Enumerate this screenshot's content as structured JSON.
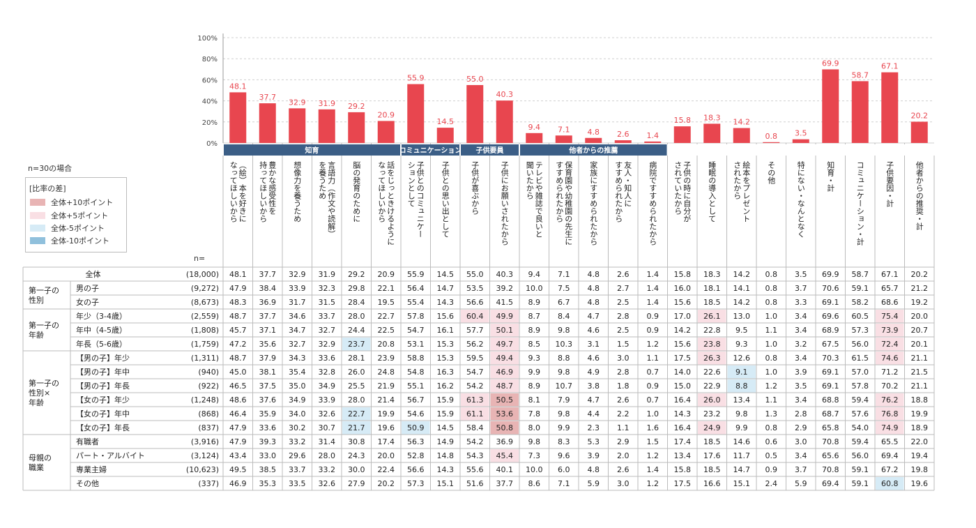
{
  "notes": {
    "n_case": "n=30の場合",
    "n_header": "n="
  },
  "legend": {
    "title": "[比率の差]",
    "items": [
      {
        "label": "全体+10ポイント",
        "color": "#e8b4b4"
      },
      {
        "label": "全体+5ポイント",
        "color": "#f9dfe4"
      },
      {
        "label": "全体-5ポイント",
        "color": "#d6ebf6"
      },
      {
        "label": "全体-10ポイント",
        "color": "#90c0dc"
      }
    ]
  },
  "chart_data": {
    "type": "bar",
    "ylim": [
      0,
      100
    ],
    "ytick_labels": [
      "0%",
      "20%",
      "40%",
      "60%",
      "80%",
      "100%"
    ],
    "bar_color": "#e8464f",
    "groups": [
      {
        "label": "知育",
        "start": 0,
        "span": 6
      },
      {
        "label": "コミュニケーション",
        "start": 6,
        "span": 2
      },
      {
        "label": "子供要員",
        "start": 8,
        "span": 2
      },
      {
        "label": "他者からの推薦",
        "start": 10,
        "span": 5
      }
    ],
    "categories": [
      [
        "（絵）本を好きに",
        "なってほしいから"
      ],
      [
        "豊かな感受性を",
        "持ってほしいから"
      ],
      [
        "想像力を養うため"
      ],
      [
        "言語力（作文や読解）",
        "を養うため"
      ],
      [
        "脳の発育のために"
      ],
      [
        "話をじっときけるように",
        "なってほしいから"
      ],
      [
        "子供とのコミュニケー",
        "ションとして"
      ],
      [
        "子供との思い出として"
      ],
      [
        "子供が喜ぶから"
      ],
      [
        "子供にお願いされたから"
      ],
      [
        "テレビや雑誌で良いと",
        "聞いたから"
      ],
      [
        "保育園や幼稚園の先生に",
        "すすめられたから"
      ],
      [
        "家族にすすめられたから"
      ],
      [
        "友人・知人に",
        "すすめられたから"
      ],
      [
        "病院ですすめられたから"
      ],
      [
        "子供の時に自分が",
        "されていたから"
      ],
      [
        "睡眠の導入として"
      ],
      [
        "絵本をプレゼント",
        "されたから"
      ],
      [
        "その他"
      ],
      [
        "特にない・なんとなく"
      ],
      [
        "知育・計"
      ],
      [
        "コミュニケーション・計"
      ],
      [
        "子供要因・計"
      ],
      [
        "他者からの推奨・計"
      ]
    ],
    "values": [
      48.1,
      37.7,
      32.9,
      31.9,
      29.2,
      20.9,
      55.9,
      14.5,
      55.0,
      40.3,
      9.4,
      7.1,
      4.8,
      2.6,
      1.4,
      15.8,
      18.3,
      14.2,
      0.8,
      3.5,
      69.9,
      58.7,
      67.1,
      20.2
    ],
    "table": {
      "total": {
        "label": "全体",
        "n": "(18,000)",
        "values": [
          "48.1",
          "37.7",
          "32.9",
          "31.9",
          "29.2",
          "20.9",
          "55.9",
          "14.5",
          "55.0",
          "40.3",
          "9.4",
          "7.1",
          "4.8",
          "2.6",
          "1.4",
          "15.8",
          "18.3",
          "14.2",
          "0.8",
          "3.5",
          "69.9",
          "58.7",
          "67.1",
          "20.2"
        ]
      },
      "sections": [
        {
          "label": [
            "第一子の",
            "性別"
          ],
          "rows": [
            {
              "label": "男の子",
              "n": "(9,272)",
              "values": [
                "47.9",
                "38.4",
                "33.9",
                "32.3",
                "29.8",
                "22.1",
                "56.4",
                "14.7",
                "53.5",
                "39.2",
                "10.0",
                "7.5",
                "4.8",
                "2.7",
                "1.4",
                "16.0",
                "18.1",
                "14.1",
                "0.8",
                "3.7",
                "70.6",
                "59.1",
                "65.7",
                "21.2"
              ],
              "hl": {}
            },
            {
              "label": "女の子",
              "n": "(8,673)",
              "values": [
                "48.3",
                "36.9",
                "31.7",
                "31.5",
                "28.4",
                "19.5",
                "55.4",
                "14.3",
                "56.6",
                "41.5",
                "8.9",
                "6.7",
                "4.8",
                "2.5",
                "1.4",
                "15.6",
                "18.5",
                "14.2",
                "0.8",
                "3.3",
                "69.1",
                "58.2",
                "68.6",
                "19.2"
              ],
              "hl": {}
            }
          ]
        },
        {
          "label": [
            "第一子の",
            "年齢"
          ],
          "rows": [
            {
              "label": "年少（3-4歳）",
              "n": "(2,559)",
              "values": [
                "48.7",
                "37.7",
                "34.6",
                "33.7",
                "28.0",
                "22.7",
                "57.8",
                "15.6",
                "60.4",
                "49.9",
                "8.7",
                "8.4",
                "4.7",
                "2.8",
                "0.9",
                "17.0",
                "26.1",
                "13.0",
                "1.0",
                "3.4",
                "69.6",
                "60.5",
                "75.4",
                "20.0"
              ],
              "hl": {
                "8": "p5",
                "9": "p5",
                "16": "p5",
                "22": "p5"
              }
            },
            {
              "label": "年中（4-5歳）",
              "n": "(1,808)",
              "values": [
                "45.7",
                "37.1",
                "34.7",
                "32.7",
                "24.4",
                "22.5",
                "54.7",
                "16.1",
                "57.7",
                "50.1",
                "8.9",
                "9.8",
                "4.6",
                "2.5",
                "0.9",
                "14.2",
                "22.8",
                "9.5",
                "1.1",
                "3.4",
                "68.9",
                "57.3",
                "73.9",
                "20.7"
              ],
              "hl": {
                "9": "p5",
                "22": "p5"
              }
            },
            {
              "label": "年長（5-6歳）",
              "n": "(1,759)",
              "values": [
                "47.2",
                "35.6",
                "32.7",
                "32.9",
                "23.7",
                "20.8",
                "53.1",
                "15.3",
                "56.2",
                "49.7",
                "8.5",
                "10.3",
                "3.1",
                "1.5",
                "1.2",
                "15.6",
                "23.8",
                "9.3",
                "1.0",
                "3.2",
                "67.5",
                "56.0",
                "72.4",
                "20.1"
              ],
              "hl": {
                "4": "m5",
                "9": "p5",
                "16": "p5",
                "22": "p5"
              }
            }
          ]
        },
        {
          "label": [
            "第一子の",
            "性別×",
            "年齢"
          ],
          "rows": [
            {
              "label": "【男の子】年少",
              "n": "(1,311)",
              "values": [
                "48.7",
                "37.9",
                "34.3",
                "33.6",
                "28.1",
                "23.9",
                "58.8",
                "15.3",
                "59.5",
                "49.4",
                "9.3",
                "8.8",
                "4.6",
                "3.0",
                "1.1",
                "17.5",
                "26.3",
                "12.6",
                "0.8",
                "3.4",
                "70.3",
                "61.5",
                "74.6",
                "21.1"
              ],
              "hl": {
                "9": "p5",
                "16": "p5",
                "22": "p5"
              }
            },
            {
              "label": "【男の子】年中",
              "n": "(940)",
              "values": [
                "45.0",
                "38.1",
                "35.4",
                "32.8",
                "26.0",
                "24.8",
                "54.8",
                "16.3",
                "54.7",
                "46.9",
                "9.9",
                "9.8",
                "4.9",
                "2.8",
                "0.7",
                "14.0",
                "22.6",
                "9.1",
                "1.0",
                "3.9",
                "69.1",
                "57.0",
                "71.2",
                "21.5"
              ],
              "hl": {
                "9": "p5",
                "17": "m5"
              }
            },
            {
              "label": "【男の子】年長",
              "n": "(922)",
              "values": [
                "46.5",
                "37.5",
                "35.0",
                "34.9",
                "25.5",
                "21.9",
                "55.1",
                "16.2",
                "54.2",
                "48.7",
                "8.9",
                "10.7",
                "3.8",
                "1.8",
                "0.9",
                "15.0",
                "22.9",
                "8.8",
                "1.2",
                "3.5",
                "69.1",
                "57.8",
                "70.2",
                "21.1"
              ],
              "hl": {
                "9": "p5",
                "17": "m5"
              }
            },
            {
              "label": "【女の子】年少",
              "n": "(1,248)",
              "values": [
                "48.6",
                "37.6",
                "34.9",
                "33.9",
                "28.0",
                "21.4",
                "56.7",
                "15.9",
                "61.3",
                "50.5",
                "8.1",
                "7.9",
                "4.7",
                "2.6",
                "0.7",
                "16.4",
                "26.0",
                "13.4",
                "1.1",
                "3.4",
                "68.8",
                "59.4",
                "76.2",
                "18.8"
              ],
              "hl": {
                "8": "p5",
                "9": "p10",
                "16": "p5",
                "22": "p5"
              }
            },
            {
              "label": "【女の子】年中",
              "n": "(868)",
              "values": [
                "46.4",
                "35.9",
                "34.0",
                "32.6",
                "22.7",
                "19.9",
                "54.6",
                "15.9",
                "61.1",
                "53.6",
                "7.8",
                "9.8",
                "4.4",
                "2.2",
                "1.0",
                "14.3",
                "23.2",
                "9.8",
                "1.3",
                "2.8",
                "68.7",
                "57.6",
                "76.8",
                "19.9"
              ],
              "hl": {
                "4": "m5",
                "8": "p5",
                "9": "p10",
                "22": "p5"
              }
            },
            {
              "label": "【女の子】年長",
              "n": "(837)",
              "values": [
                "47.9",
                "33.6",
                "30.2",
                "30.7",
                "21.7",
                "19.6",
                "50.9",
                "14.5",
                "58.4",
                "50.8",
                "8.0",
                "9.9",
                "2.3",
                "1.1",
                "1.6",
                "16.4",
                "24.9",
                "9.9",
                "0.8",
                "2.9",
                "65.8",
                "54.0",
                "74.9",
                "18.9"
              ],
              "hl": {
                "4": "m5",
                "6": "m5",
                "9": "p10",
                "16": "p5",
                "22": "p5"
              }
            }
          ]
        },
        {
          "label": [
            "母親の",
            "職業"
          ],
          "rows": [
            {
              "label": "有職者",
              "n": "(3,916)",
              "values": [
                "47.9",
                "39.3",
                "33.2",
                "31.4",
                "30.8",
                "17.4",
                "56.3",
                "14.9",
                "54.2",
                "36.9",
                "9.8",
                "8.3",
                "5.3",
                "2.9",
                "1.5",
                "17.4",
                "18.5",
                "14.6",
                "0.6",
                "3.0",
                "70.8",
                "59.4",
                "65.5",
                "22.0"
              ],
              "hl": {}
            },
            {
              "label": "パート・アルバイト",
              "n": "(3,124)",
              "values": [
                "43.4",
                "33.0",
                "29.6",
                "28.0",
                "24.3",
                "20.0",
                "52.8",
                "14.8",
                "54.3",
                "45.4",
                "7.3",
                "9.6",
                "3.9",
                "2.0",
                "1.2",
                "13.4",
                "17.6",
                "11.7",
                "0.5",
                "3.4",
                "65.6",
                "56.0",
                "69.4",
                "19.4"
              ],
              "hl": {
                "9": "p5"
              }
            },
            {
              "label": "専業主婦",
              "n": "(10,623)",
              "values": [
                "49.5",
                "38.5",
                "33.7",
                "33.2",
                "30.0",
                "22.4",
                "56.6",
                "14.3",
                "55.6",
                "40.1",
                "10.0",
                "6.0",
                "4.8",
                "2.6",
                "1.4",
                "15.8",
                "18.5",
                "14.7",
                "0.9",
                "3.7",
                "70.8",
                "59.1",
                "67.2",
                "19.8"
              ],
              "hl": {}
            },
            {
              "label": "その他",
              "n": "(337)",
              "values": [
                "46.9",
                "35.3",
                "33.5",
                "32.6",
                "27.9",
                "20.2",
                "57.3",
                "15.1",
                "51.6",
                "37.7",
                "8.6",
                "7.1",
                "5.9",
                "3.0",
                "1.2",
                "17.5",
                "16.6",
                "15.1",
                "2.4",
                "5.9",
                "69.4",
                "59.1",
                "60.8",
                "19.6"
              ],
              "hl": {
                "22": "m5"
              }
            }
          ]
        }
      ]
    }
  }
}
